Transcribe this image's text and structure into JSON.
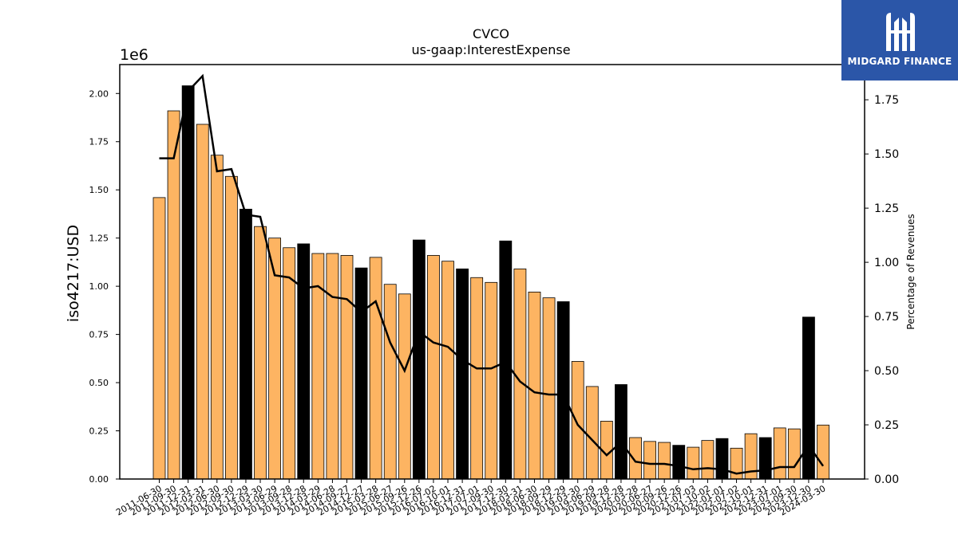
{
  "chart_data": {
    "type": "bar",
    "title": "CVCO",
    "subtitle": "us-gaap:InterestExpense",
    "ylabel": "iso4217:USD",
    "y2label": "Percentage of Revenues",
    "y_offset_label": "1e6",
    "ylim": [
      0,
      2.15
    ],
    "y2lim": [
      0,
      1.9125
    ],
    "y_ticks": [
      "0.00",
      "0.25",
      "0.50",
      "0.75",
      "1.00",
      "1.25",
      "1.50",
      "1.75",
      "2.00"
    ],
    "y2_ticks": [
      "0.00",
      "0.25",
      "0.50",
      "0.75",
      "1.00",
      "1.25",
      "1.50",
      "1.75"
    ],
    "categories": [
      "2011-06-30",
      "2011-09-30",
      "2011-12-31",
      "2012-03-31",
      "2012-06-30",
      "2012-09-30",
      "2012-12-29",
      "2013-03-30",
      "2013-06-29",
      "2013-09-28",
      "2013-12-28",
      "2014-03-29",
      "2014-06-28",
      "2014-09-27",
      "2014-12-27",
      "2015-03-28",
      "2015-06-27",
      "2015-09-26",
      "2015-12-26",
      "2016-07-02",
      "2016-10-01",
      "2016-12-31",
      "2017-07-01",
      "2017-09-30",
      "2017-12-30",
      "2018-03-31",
      "2018-06-30",
      "2018-09-29",
      "2018-12-29",
      "2019-03-30",
      "2019-06-29",
      "2019-09-28",
      "2019-12-28",
      "2020-03-28",
      "2020-06-27",
      "2020-09-26",
      "2020-12-26",
      "2021-07-03",
      "2021-10-02",
      "2022-01-01",
      "2022-07-02",
      "2022-10-01",
      "2022-12-31",
      "2023-07-01",
      "2023-09-30",
      "2023-12-30",
      "2024-03-30"
    ],
    "series": [
      {
        "values": [
          1.46,
          1.91,
          2.04,
          1.84,
          1.68,
          1.57,
          1.4,
          1.31,
          1.25,
          1.2,
          1.22,
          1.17,
          1.17,
          1.16,
          1.095,
          1.15,
          1.01,
          0.96,
          1.24,
          1.16,
          1.13,
          1.09,
          1.045,
          1.02,
          1.235,
          1.09,
          0.97,
          0.94,
          0.92,
          0.61,
          0.48,
          0.3,
          0.49,
          0.215,
          0.195,
          0.19,
          0.175,
          0.165,
          0.2,
          0.21,
          0.16,
          0.235,
          0.215,
          0.265,
          0.26,
          0.84,
          0.28
        ],
        "highlight": [
          false,
          false,
          true,
          false,
          false,
          false,
          true,
          false,
          false,
          false,
          true,
          false,
          false,
          false,
          true,
          false,
          false,
          false,
          true,
          false,
          false,
          true,
          false,
          false,
          true,
          false,
          false,
          false,
          true,
          false,
          false,
          false,
          true,
          false,
          false,
          false,
          true,
          false,
          false,
          true,
          false,
          false,
          true,
          false,
          false,
          true,
          false
        ],
        "color": "#fdb462",
        "highlight_color": "#000000"
      },
      {
        "values": [
          1.48,
          1.48,
          1.79,
          1.86,
          1.42,
          1.43,
          1.22,
          1.21,
          0.94,
          0.93,
          0.88,
          0.89,
          0.84,
          0.83,
          0.77,
          0.82,
          0.63,
          0.5,
          0.68,
          0.63,
          0.61,
          0.55,
          0.51,
          0.51,
          0.54,
          0.45,
          0.4,
          0.39,
          0.39,
          0.25,
          0.18,
          0.11,
          0.17,
          0.08,
          0.07,
          0.07,
          0.06,
          0.045,
          0.05,
          0.045,
          0.025,
          0.035,
          0.04,
          0.055,
          0.055,
          0.155,
          0.06
        ],
        "axis": "right",
        "color": "#000000"
      }
    ],
    "grid": false
  },
  "logo": {
    "text": "MIDGARD FINANCE"
  }
}
